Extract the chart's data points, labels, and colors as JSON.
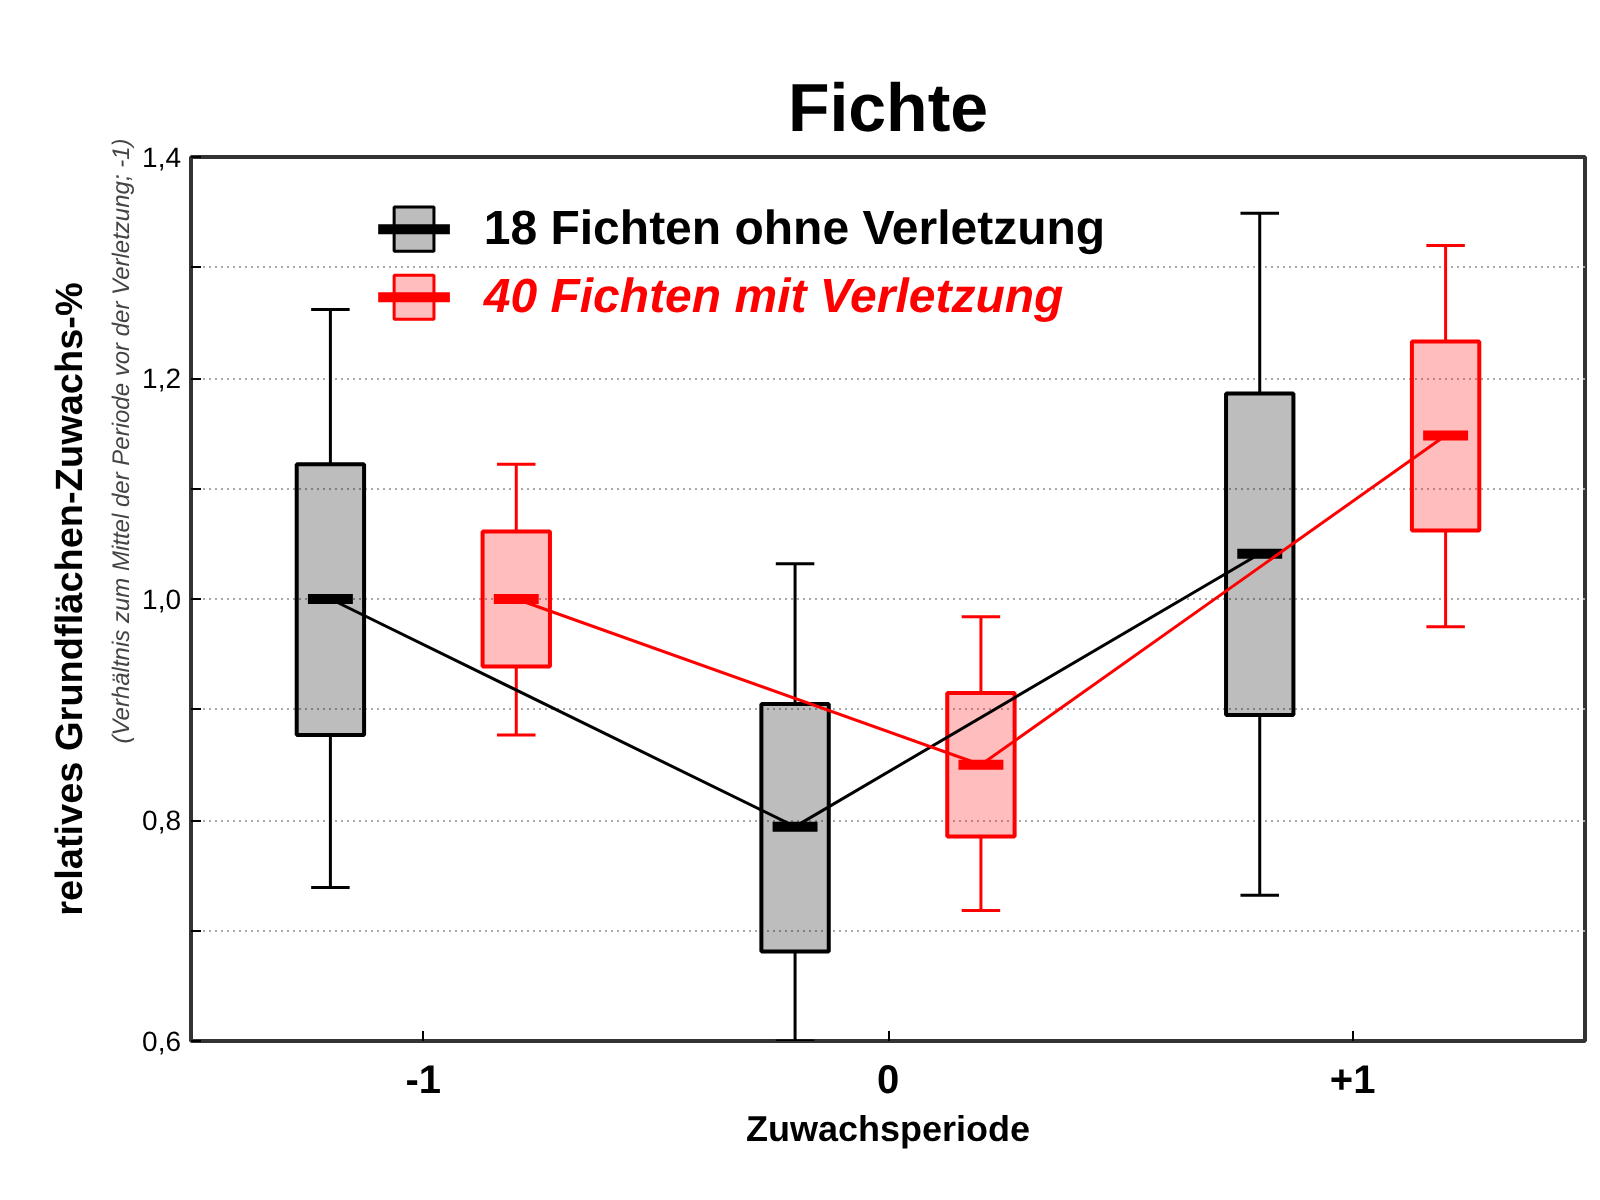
{
  "chart_data": {
    "type": "box",
    "title": "Fichte",
    "xlabel": "Zuwachsperiode",
    "ylabel": "relatives Grundflächen-Zuwachs-%",
    "annotations": [
      "(Verhältnis zum Mittel der Periode vor der Verletzung; -1)"
    ],
    "categories": [
      "-1",
      "0",
      "+1"
    ],
    "series": [
      {
        "name": "18 Fichten ohne Verletzung",
        "color": "#000000",
        "boxes": [
          {
            "low": 0.739,
            "q1": 0.877,
            "median": 1.0,
            "q3": 1.122,
            "high": 1.262
          },
          {
            "low": 0.6,
            "q1": 0.681,
            "median": 0.794,
            "q3": 0.905,
            "high": 1.032
          },
          {
            "low": 0.732,
            "q1": 0.895,
            "median": 1.041,
            "q3": 1.186,
            "high": 1.349
          }
        ]
      },
      {
        "name": "40 Fichten mit Verletzung",
        "color": "#ff0000",
        "boxes": [
          {
            "low": 0.877,
            "q1": 0.939,
            "median": 1.0,
            "q3": 1.061,
            "high": 1.122
          },
          {
            "low": 0.718,
            "q1": 0.785,
            "median": 0.85,
            "q3": 0.915,
            "high": 0.984
          },
          {
            "low": 0.975,
            "q1": 1.062,
            "median": 1.148,
            "q3": 1.233,
            "high": 1.32
          }
        ]
      },
      {
        "type": "line",
        "color": "#000000",
        "values": [
          1.0,
          0.794,
          1.041
        ]
      },
      {
        "type": "line",
        "color": "#ff0000",
        "values": [
          1.0,
          0.85,
          1.148
        ]
      }
    ],
    "ylim": [
      0.6,
      1.4
    ],
    "yticks": [
      {
        "value": 0.6,
        "label": "0,6"
      },
      {
        "value": 0.7,
        "label": null
      },
      {
        "value": 0.8,
        "label": "0,8"
      },
      {
        "value": 0.9,
        "label": null
      },
      {
        "value": 1.0,
        "label": "1,0"
      },
      {
        "value": 1.1,
        "label": null
      },
      {
        "value": 1.2,
        "label": "1,2"
      },
      {
        "value": 1.3,
        "label": null
      },
      {
        "value": 1.4,
        "label": "1,4"
      }
    ],
    "grid": "y",
    "legend": "top left"
  }
}
